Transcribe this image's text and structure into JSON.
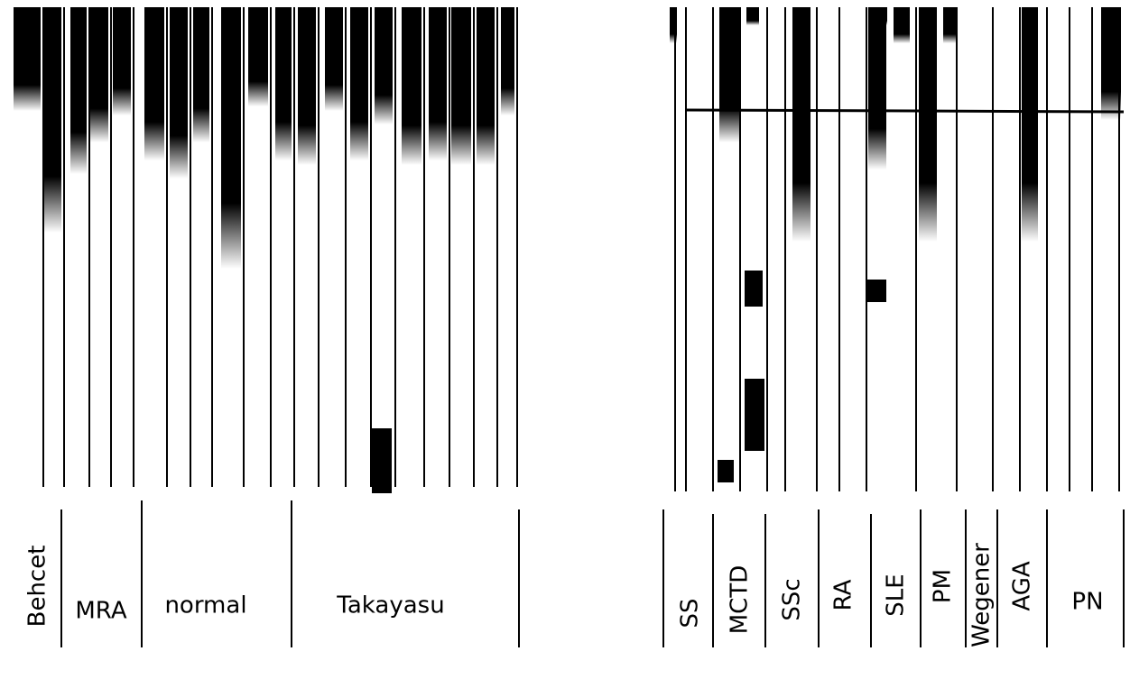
{
  "left_panel": {
    "lanes": [
      "Behcet",
      "MRA",
      "normal",
      "Takayasu"
    ]
  },
  "right_panel": {
    "lanes": [
      "SS",
      "MCTD",
      "SSc",
      "RA",
      "SLE",
      "PM",
      "Wegener",
      "AGA",
      "PN"
    ]
  }
}
